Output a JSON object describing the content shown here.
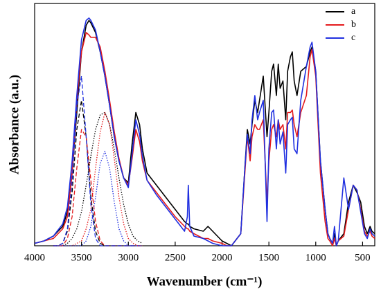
{
  "chart_data": {
    "type": "line",
    "xlabel": "Wavenumber (cm⁻¹)",
    "ylabel": "Absorbance (a.u.)",
    "xlim": [
      4000,
      370
    ],
    "xticks": [
      4000,
      3500,
      3000,
      2500,
      2000,
      1500,
      1000,
      500
    ],
    "ylim": [
      0,
      1
    ],
    "legend": "upper right",
    "x": [
      4000,
      3900,
      3800,
      3700,
      3650,
      3600,
      3550,
      3500,
      3450,
      3420,
      3400,
      3350,
      3300,
      3250,
      3200,
      3150,
      3100,
      3050,
      3000,
      2960,
      2920,
      2880,
      2850,
      2800,
      2700,
      2600,
      2500,
      2400,
      2370,
      2360,
      2345,
      2300,
      2200,
      2150,
      2100,
      2000,
      1950,
      1900,
      1800,
      1760,
      1730,
      1700,
      1680,
      1650,
      1620,
      1600,
      1560,
      1520,
      1500,
      1470,
      1450,
      1420,
      1400,
      1380,
      1350,
      1320,
      1300,
      1270,
      1250,
      1230,
      1200,
      1160,
      1100,
      1060,
      1040,
      1000,
      950,
      900,
      870,
      850,
      820,
      800,
      780,
      760,
      700,
      650,
      600,
      560,
      520,
      480,
      450,
      420,
      400,
      370
    ],
    "series": [
      {
        "name": "a",
        "color": "#000000",
        "dash": "solid",
        "values": [
          0.01,
          0.02,
          0.04,
          0.08,
          0.14,
          0.3,
          0.55,
          0.8,
          0.91,
          0.93,
          0.92,
          0.88,
          0.8,
          0.7,
          0.58,
          0.45,
          0.35,
          0.28,
          0.26,
          0.42,
          0.55,
          0.5,
          0.4,
          0.3,
          0.25,
          0.2,
          0.15,
          0.1,
          0.09,
          0.09,
          0.08,
          0.07,
          0.06,
          0.08,
          0.06,
          0.02,
          0.01,
          0,
          0.05,
          0.3,
          0.48,
          0.42,
          0.5,
          0.6,
          0.55,
          0.6,
          0.7,
          0.45,
          0.55,
          0.72,
          0.75,
          0.62,
          0.75,
          0.65,
          0.68,
          0.52,
          0.72,
          0.78,
          0.8,
          0.68,
          0.62,
          0.72,
          0.74,
          0.8,
          0.82,
          0.72,
          0.35,
          0.15,
          0.05,
          0.03,
          0.01,
          0.05,
          0,
          0.02,
          0.05,
          0.18,
          0.25,
          0.22,
          0.18,
          0.08,
          0.05,
          0.08,
          0.06,
          0.05
        ]
      },
      {
        "name": "b",
        "color": "#e41a1c",
        "dash": "solid",
        "values": [
          0.01,
          0.02,
          0.03,
          0.07,
          0.12,
          0.3,
          0.6,
          0.8,
          0.88,
          0.87,
          0.86,
          0.86,
          0.82,
          0.72,
          0.6,
          0.47,
          0.36,
          0.28,
          0.25,
          0.36,
          0.48,
          0.43,
          0.35,
          0.27,
          0.22,
          0.17,
          0.12,
          0.08,
          0.07,
          0.07,
          0.06,
          0.05,
          0.03,
          0.03,
          0.02,
          0.01,
          0,
          0,
          0.05,
          0.28,
          0.45,
          0.35,
          0.45,
          0.5,
          0.48,
          0.48,
          0.52,
          0.18,
          0.35,
          0.48,
          0.5,
          0.45,
          0.52,
          0.48,
          0.5,
          0.4,
          0.55,
          0.55,
          0.56,
          0.5,
          0.45,
          0.55,
          0.62,
          0.78,
          0.81,
          0.7,
          0.3,
          0.1,
          0.03,
          0.02,
          0,
          0.03,
          0,
          0.02,
          0.04,
          0.15,
          0.25,
          0.23,
          0.15,
          0.06,
          0.04,
          0.06,
          0.04,
          0.03
        ]
      },
      {
        "name": "c",
        "color": "#1f2fe0",
        "dash": "solid",
        "values": [
          0.01,
          0.02,
          0.04,
          0.09,
          0.16,
          0.35,
          0.62,
          0.85,
          0.93,
          0.94,
          0.93,
          0.89,
          0.8,
          0.7,
          0.58,
          0.45,
          0.35,
          0.28,
          0.24,
          0.38,
          0.52,
          0.46,
          0.37,
          0.27,
          0.21,
          0.16,
          0.11,
          0.06,
          0.12,
          0.25,
          0.08,
          0.04,
          0.03,
          0.02,
          0.01,
          0,
          0,
          0,
          0.05,
          0.3,
          0.46,
          0.38,
          0.52,
          0.62,
          0.52,
          0.55,
          0.6,
          0.1,
          0.4,
          0.55,
          0.56,
          0.4,
          0.52,
          0.42,
          0.47,
          0.3,
          0.5,
          0.52,
          0.53,
          0.4,
          0.38,
          0.6,
          0.74,
          0.82,
          0.84,
          0.72,
          0.35,
          0.15,
          0.05,
          0.03,
          0.01,
          0.08,
          0,
          0.02,
          0.28,
          0.15,
          0.25,
          0.23,
          0.14,
          0.05,
          0.03,
          0.07,
          0.05,
          0.04
        ]
      },
      {
        "color": "#000000",
        "dash": "dashed",
        "x": [
          3800,
          3750,
          3700,
          3650,
          3600,
          3550,
          3500,
          3450,
          3400,
          3350,
          3300,
          3250,
          3200,
          3150,
          3100,
          3050,
          3000,
          2950,
          2900,
          2850
        ],
        "values": [
          0,
          0,
          0.01,
          0.06,
          0.22,
          0.48,
          0.6,
          0.45,
          0.2,
          0.06,
          0.01,
          0,
          0,
          0,
          0,
          0,
          0,
          0,
          0,
          0
        ]
      },
      {
        "color": "#e41a1c",
        "dash": "dashed",
        "x": [
          3800,
          3750,
          3700,
          3650,
          3600,
          3550,
          3500,
          3450,
          3400,
          3350,
          3300,
          3250,
          3200,
          3150,
          3100,
          3050,
          3000,
          2950,
          2900,
          2850
        ],
        "values": [
          0,
          0,
          0,
          0.03,
          0.12,
          0.32,
          0.48,
          0.45,
          0.27,
          0.1,
          0.02,
          0,
          0,
          0,
          0,
          0,
          0,
          0,
          0,
          0
        ]
      },
      {
        "color": "#1f2fe0",
        "dash": "dashed",
        "x": [
          3800,
          3750,
          3700,
          3650,
          3600,
          3550,
          3500,
          3450,
          3400,
          3350,
          3300,
          3250,
          3200,
          3150,
          3100,
          3050,
          3000,
          2950,
          2900,
          2850
        ],
        "values": [
          0,
          0,
          0.01,
          0.07,
          0.27,
          0.58,
          0.7,
          0.45,
          0.17,
          0.03,
          0,
          0,
          0,
          0,
          0,
          0,
          0,
          0,
          0,
          0
        ]
      },
      {
        "color": "#000000",
        "dash": "dotted",
        "x": [
          3800,
          3750,
          3700,
          3650,
          3600,
          3550,
          3500,
          3450,
          3400,
          3350,
          3300,
          3250,
          3200,
          3150,
          3100,
          3050,
          3000,
          2950,
          2900,
          2850
        ],
        "values": [
          0,
          0,
          0,
          0.01,
          0.03,
          0.07,
          0.14,
          0.25,
          0.37,
          0.48,
          0.54,
          0.55,
          0.5,
          0.4,
          0.28,
          0.17,
          0.09,
          0.04,
          0.02,
          0.01
        ]
      },
      {
        "color": "#e41a1c",
        "dash": "dotted",
        "x": [
          3800,
          3750,
          3700,
          3650,
          3600,
          3550,
          3500,
          3450,
          3400,
          3350,
          3300,
          3250,
          3200,
          3150,
          3100,
          3050,
          3000,
          2950,
          2900,
          2850
        ],
        "values": [
          0,
          0,
          0,
          0,
          0,
          0.01,
          0.02,
          0.07,
          0.15,
          0.32,
          0.47,
          0.55,
          0.5,
          0.36,
          0.2,
          0.09,
          0.03,
          0.01,
          0,
          0
        ]
      },
      {
        "color": "#1f2fe0",
        "dash": "dotted",
        "x": [
          3800,
          3750,
          3700,
          3650,
          3600,
          3550,
          3500,
          3450,
          3400,
          3350,
          3300,
          3250,
          3200,
          3150,
          3100,
          3050,
          3000,
          2950,
          2900,
          2850
        ],
        "values": [
          0,
          0,
          0,
          0,
          0,
          0,
          0,
          0.02,
          0.08,
          0.2,
          0.34,
          0.39,
          0.32,
          0.18,
          0.07,
          0.02,
          0,
          0,
          0,
          0
        ]
      }
    ]
  }
}
